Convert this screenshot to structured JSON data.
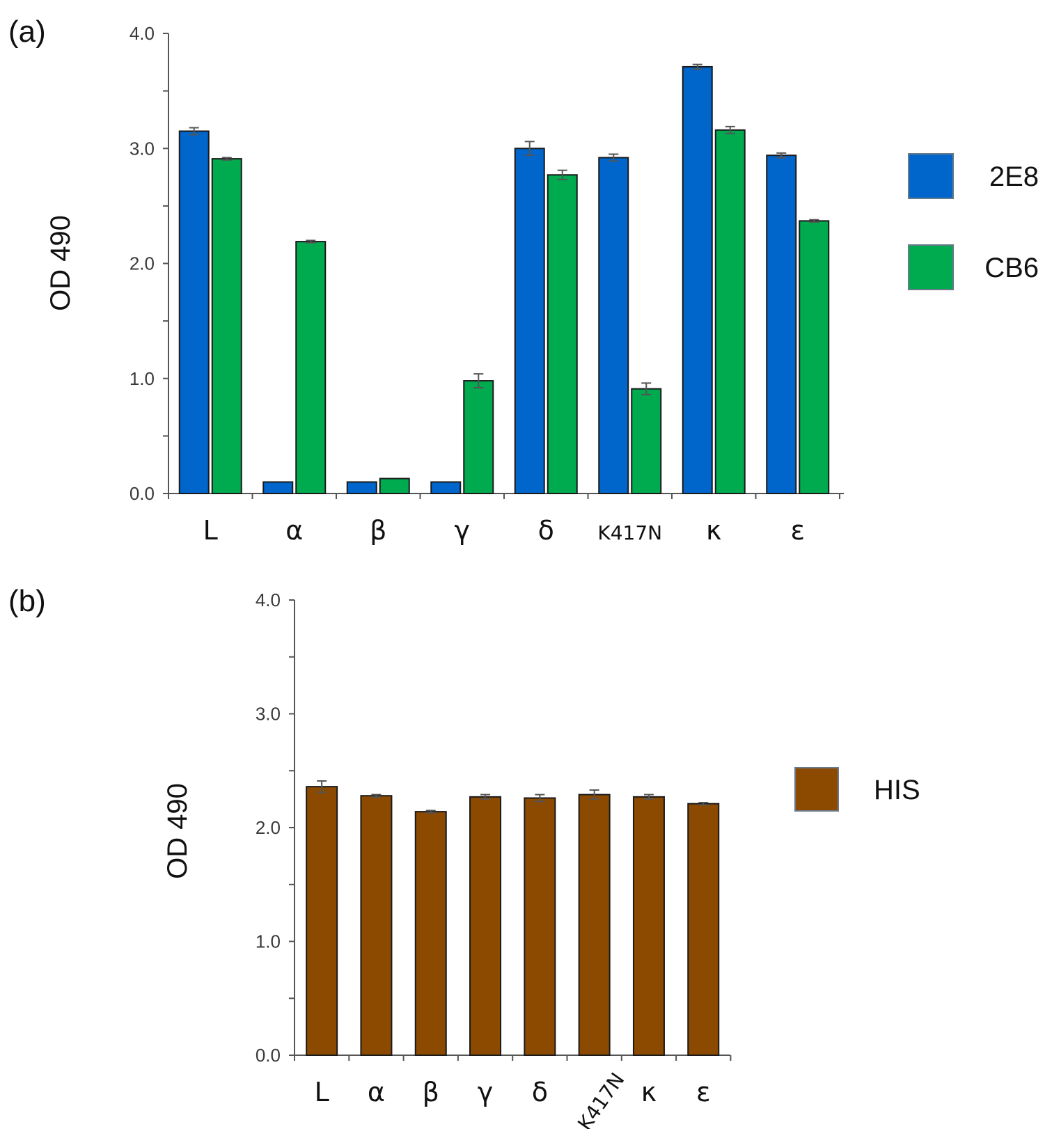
{
  "chart_data": [
    {
      "panel": "(a)",
      "type": "bar",
      "ylabel": "OD 490",
      "xlabel": "",
      "ylim": [
        0,
        4
      ],
      "yticks": [
        "0.0",
        "1.0",
        "2.0",
        "3.0",
        "4.0"
      ],
      "categories": [
        "L",
        "α",
        "β",
        "γ",
        "δ",
        "K417N",
        "κ",
        "ε"
      ],
      "series": [
        {
          "name": "2E8",
          "color": "#0066cc",
          "values": [
            3.15,
            0.1,
            0.1,
            0.1,
            3.0,
            2.92,
            3.71,
            2.94
          ],
          "errors": [
            0.03,
            0.0,
            0.0,
            0.0,
            0.06,
            0.03,
            0.02,
            0.02
          ]
        },
        {
          "name": "CB6",
          "color": "#00aa4f",
          "values": [
            2.91,
            2.19,
            0.13,
            0.98,
            2.77,
            0.91,
            3.16,
            2.37
          ],
          "errors": [
            0.01,
            0.01,
            0.0,
            0.06,
            0.04,
            0.05,
            0.03,
            0.01
          ]
        }
      ],
      "legend": "right"
    },
    {
      "panel": "(b)",
      "type": "bar",
      "ylabel": "OD 490",
      "xlabel": "",
      "ylim": [
        0,
        4
      ],
      "yticks": [
        "0.0",
        "1.0",
        "2.0",
        "3.0",
        "4.0"
      ],
      "categories": [
        "L",
        "α",
        "β",
        "γ",
        "δ",
        "K417N",
        "κ",
        "ε"
      ],
      "series": [
        {
          "name": "HIS",
          "color": "#8b4a00",
          "values": [
            2.36,
            2.28,
            2.14,
            2.27,
            2.26,
            2.29,
            2.27,
            2.21
          ],
          "errors": [
            0.05,
            0.01,
            0.01,
            0.02,
            0.03,
            0.04,
            0.02,
            0.01
          ]
        }
      ],
      "legend": "right"
    }
  ]
}
